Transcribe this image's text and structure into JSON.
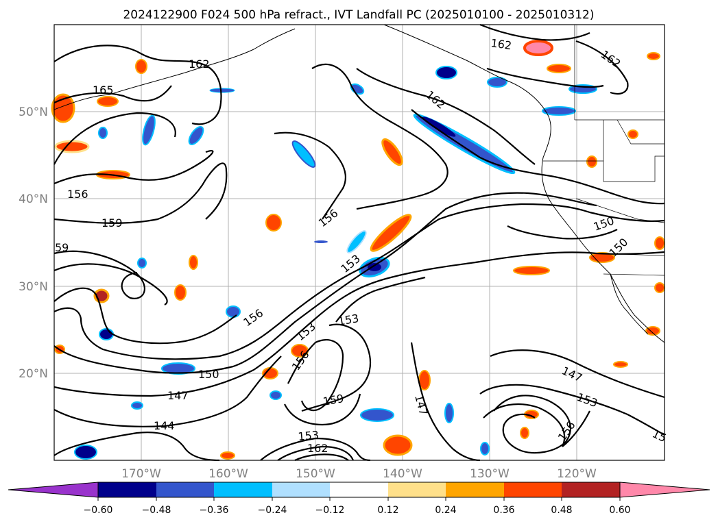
{
  "title": "2024122900 F024 500 hPa refract., IVT Landfall PC (2025010100 - 2025010312)",
  "lat_labels": [
    "50°N",
    "40°N",
    "30°N",
    "20°N"
  ],
  "lon_labels": [
    "170°W",
    "160°W",
    "150°W",
    "140°W",
    "130°W",
    "120°W"
  ],
  "colorbar": {
    "ticks": [
      "−0.60",
      "−0.48",
      "−0.36",
      "−0.24",
      "−0.12",
      "0.12",
      "0.24",
      "0.36",
      "0.48",
      "0.60"
    ],
    "colors": [
      "#9933cc",
      "#00008b",
      "#3355cc",
      "#00bfff",
      "#b0e0ff",
      "#ffffff",
      "#ffe08a",
      "#ffa500",
      "#ff4500",
      "#b22222",
      "#ff88aa"
    ]
  },
  "contour_labels": [
    "162",
    "165",
    "162",
    "162",
    "162",
    "156",
    "159",
    "59",
    "156",
    "153",
    "150",
    "150",
    "156",
    "153",
    "153",
    "156",
    "150",
    "147",
    "144",
    "159",
    "147",
    "153",
    "162",
    "147",
    "153",
    "156",
    "15"
  ],
  "map": {
    "lat_range": [
      10,
      60
    ],
    "lon_range": [
      -180,
      -110
    ],
    "contour_field": "500 hPa refractivity",
    "shaded_field": "IVT Landfall PC"
  }
}
